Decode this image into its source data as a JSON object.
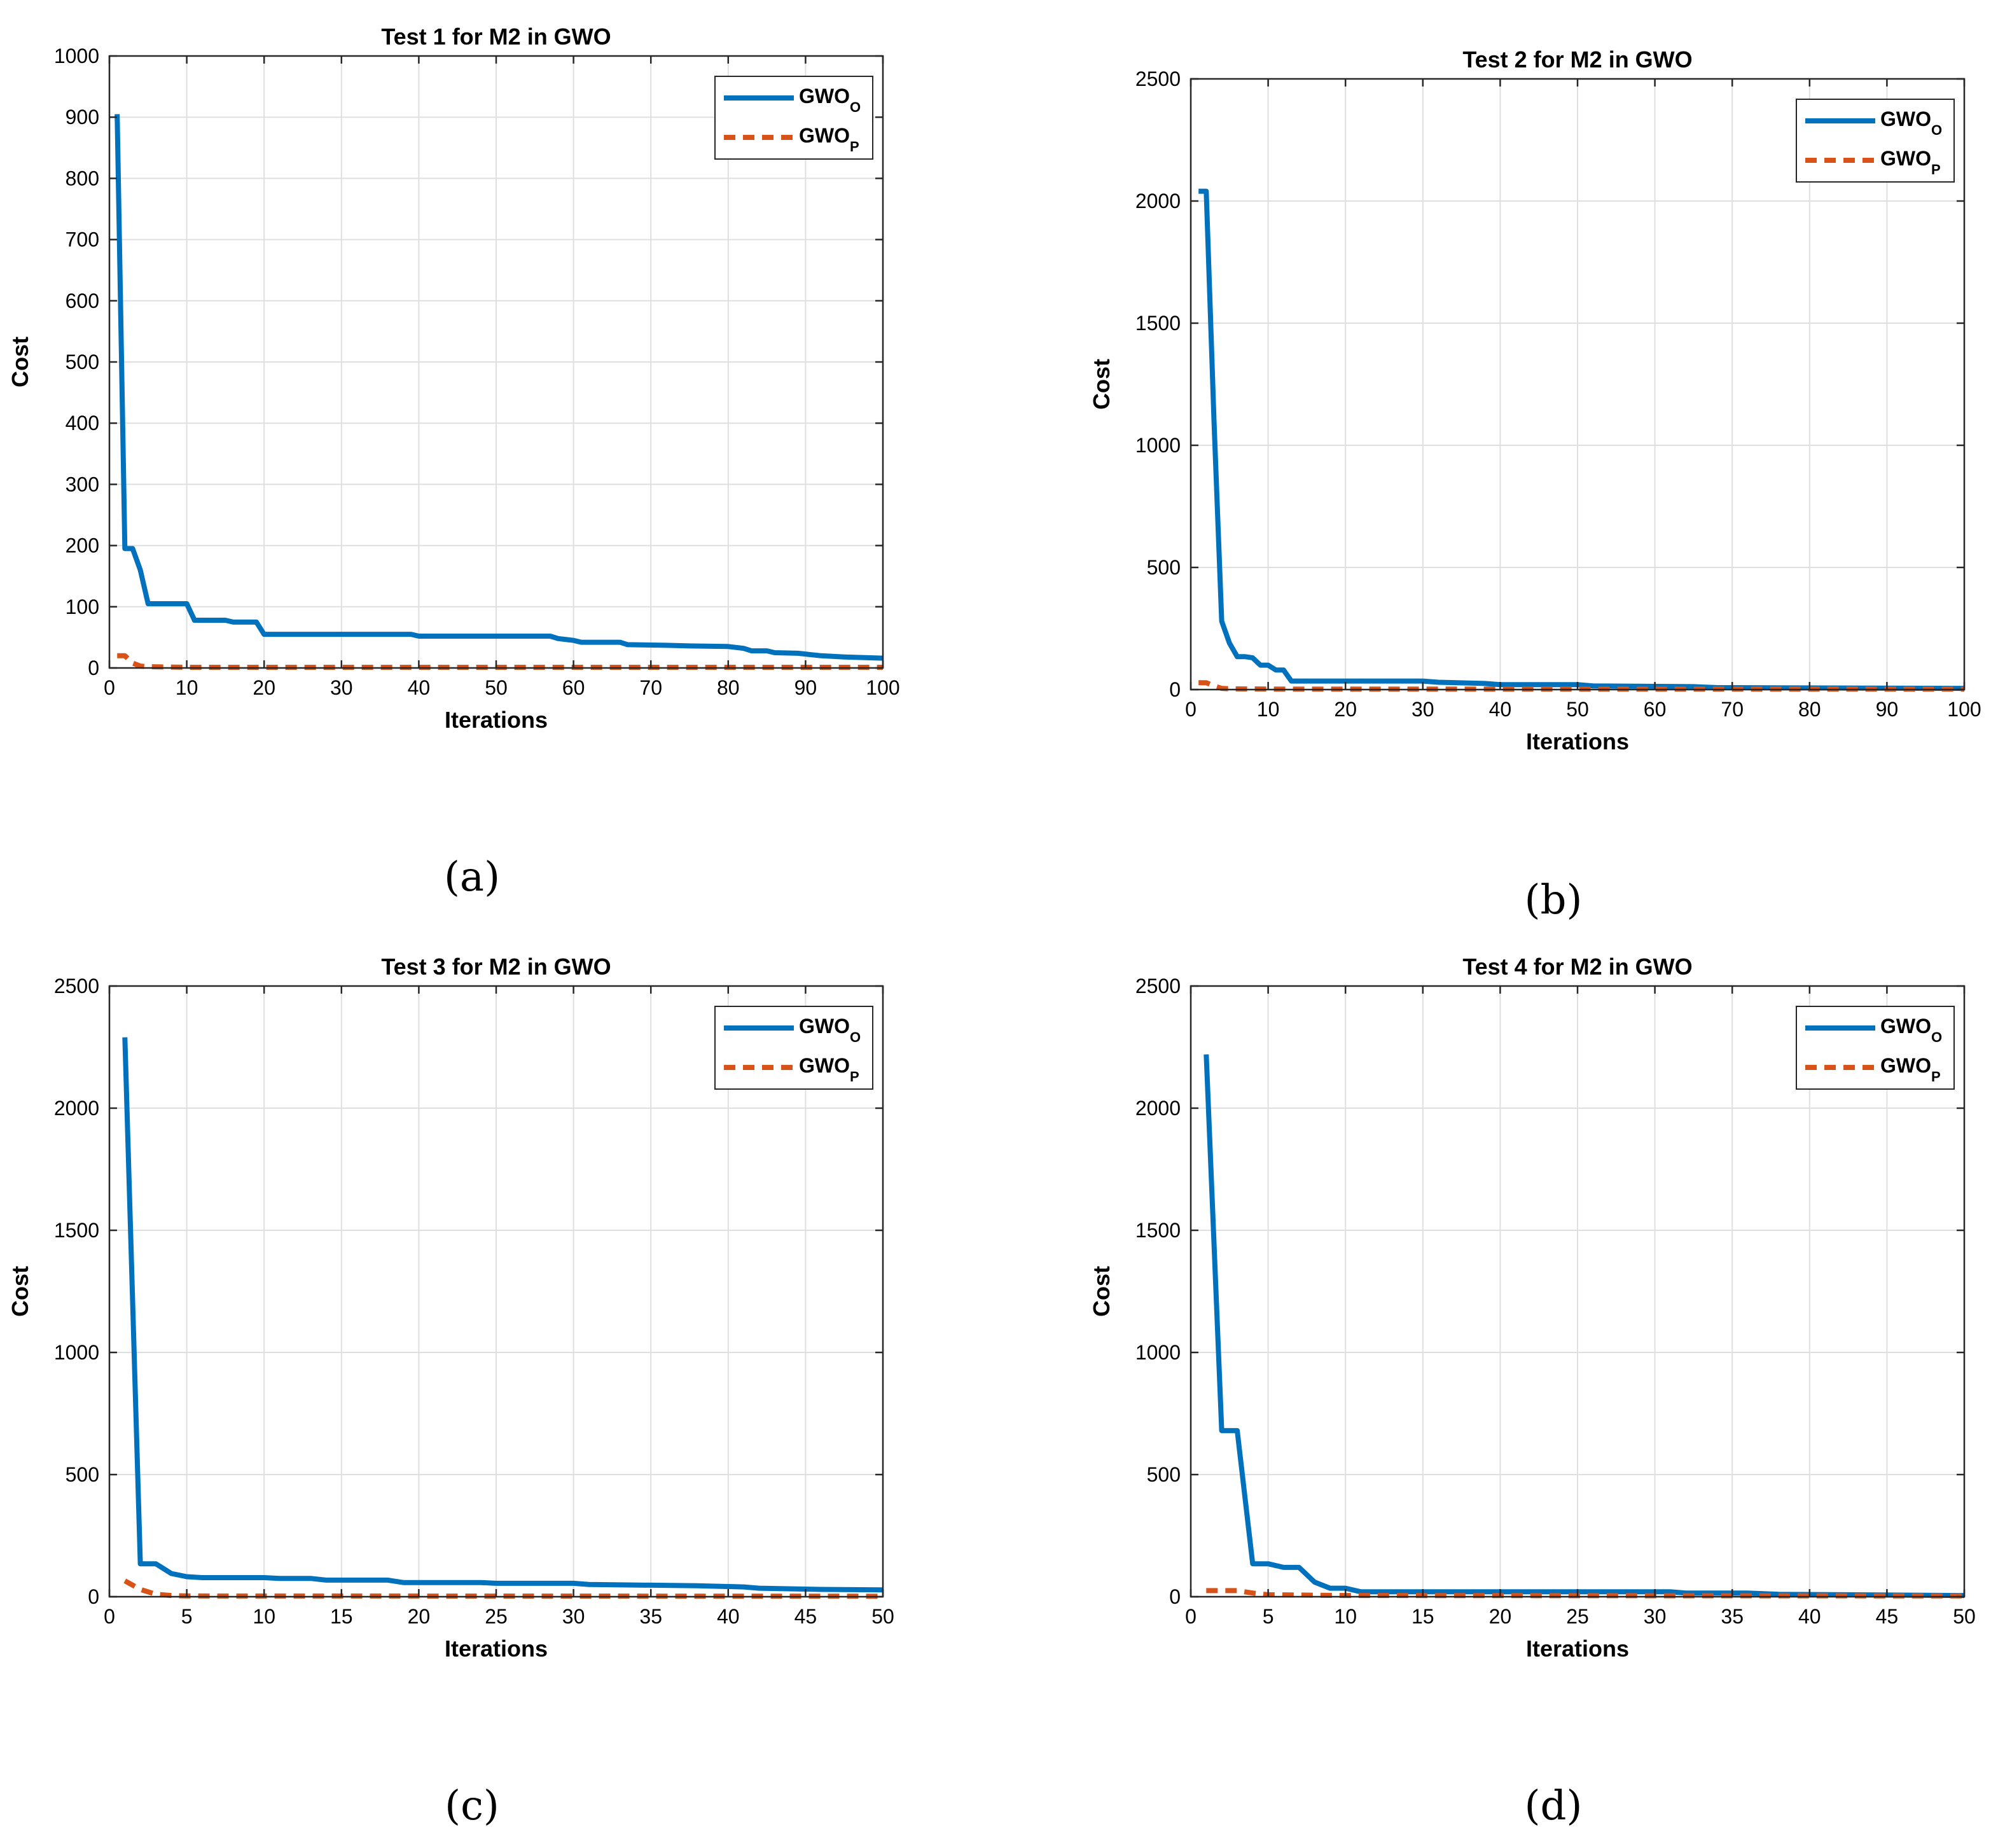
{
  "chart_data": [
    {
      "type": "line",
      "panel": "a",
      "caption": "(a)",
      "title": "Test 1 for M2 in GWO",
      "xlabel": "Iterations",
      "ylabel": "Cost",
      "xlim": [
        0,
        100
      ],
      "ylim": [
        0,
        1000
      ],
      "xticks": [
        0,
        10,
        20,
        30,
        40,
        50,
        60,
        70,
        80,
        90,
        100
      ],
      "yticks": [
        0,
        100,
        200,
        300,
        400,
        500,
        600,
        700,
        800,
        900,
        1000
      ],
      "grid": true,
      "legend_position": "top-right",
      "series": [
        {
          "name": "GWO_O",
          "legend_main": "GWO",
          "legend_sub": "O",
          "color": "#0072BD",
          "style": "solid",
          "x": [
            1,
            2,
            3,
            4,
            5,
            6,
            10,
            11,
            15,
            16,
            19,
            20,
            39,
            40,
            57,
            58,
            60,
            61,
            66,
            67,
            72,
            75,
            80,
            82,
            83,
            85,
            86,
            89,
            92,
            95,
            100
          ],
          "y": [
            905,
            195,
            195,
            160,
            105,
            105,
            105,
            78,
            78,
            75,
            75,
            55,
            55,
            52,
            52,
            48,
            45,
            42,
            42,
            38,
            37,
            36,
            35,
            32,
            28,
            28,
            25,
            24,
            20,
            18,
            16
          ]
        },
        {
          "name": "GWO_P",
          "legend_main": "GWO",
          "legend_sub": "P",
          "color": "#D95319",
          "style": "dashed",
          "x": [
            1,
            2,
            3,
            4,
            5,
            10,
            20,
            100
          ],
          "y": [
            20,
            20,
            8,
            3,
            2,
            1,
            1,
            1
          ]
        }
      ]
    },
    {
      "type": "line",
      "panel": "b",
      "caption": "(b)",
      "title": "Test 2 for M2 in GWO",
      "xlabel": "Iterations",
      "ylabel": "Cost",
      "xlim": [
        0,
        100
      ],
      "ylim": [
        0,
        2500
      ],
      "xticks": [
        0,
        10,
        20,
        30,
        40,
        50,
        60,
        70,
        80,
        90,
        100
      ],
      "yticks": [
        0,
        500,
        1000,
        1500,
        2000,
        2500
      ],
      "grid": true,
      "legend_position": "top-right",
      "series": [
        {
          "name": "GWO_O",
          "legend_main": "GWO",
          "legend_sub": "O",
          "color": "#0072BD",
          "style": "solid",
          "x": [
            1,
            2,
            3,
            4,
            5,
            6,
            7,
            8,
            9,
            10,
            11,
            12,
            13,
            20,
            30,
            32,
            38,
            40,
            50,
            52,
            65,
            68,
            100
          ],
          "y": [
            2040,
            2040,
            1100,
            280,
            190,
            135,
            135,
            130,
            100,
            100,
            80,
            80,
            35,
            35,
            35,
            30,
            25,
            20,
            20,
            15,
            12,
            8,
            5
          ]
        },
        {
          "name": "GWO_P",
          "legend_main": "GWO",
          "legend_sub": "P",
          "color": "#D95319",
          "style": "dashed",
          "x": [
            1,
            2,
            3,
            4,
            5,
            10,
            100
          ],
          "y": [
            28,
            28,
            15,
            5,
            3,
            2,
            2
          ]
        }
      ]
    },
    {
      "type": "line",
      "panel": "c",
      "caption": "(c)",
      "title": "Test 3 for M2 in GWO",
      "xlabel": "Iterations",
      "ylabel": "Cost",
      "xlim": [
        0,
        50
      ],
      "ylim": [
        0,
        2500
      ],
      "xticks": [
        0,
        5,
        10,
        15,
        20,
        25,
        30,
        35,
        40,
        45,
        50
      ],
      "yticks": [
        0,
        500,
        1000,
        1500,
        2000,
        2500
      ],
      "grid": true,
      "legend_position": "top-right",
      "series": [
        {
          "name": "GWO_O",
          "legend_main": "GWO",
          "legend_sub": "O",
          "color": "#0072BD",
          "style": "solid",
          "x": [
            1,
            2,
            3,
            4,
            5,
            6,
            10,
            11,
            13,
            14,
            18,
            19,
            24,
            25,
            30,
            31,
            38,
            41,
            42,
            46,
            50
          ],
          "y": [
            2290,
            135,
            135,
            95,
            82,
            78,
            78,
            75,
            75,
            68,
            68,
            58,
            58,
            55,
            55,
            50,
            45,
            40,
            35,
            30,
            28
          ]
        },
        {
          "name": "GWO_P",
          "legend_main": "GWO",
          "legend_sub": "P",
          "color": "#D95319",
          "style": "dashed",
          "x": [
            1,
            2,
            3,
            4,
            5,
            50
          ],
          "y": [
            65,
            30,
            10,
            5,
            3,
            2
          ]
        }
      ]
    },
    {
      "type": "line",
      "panel": "d",
      "caption": "(d)",
      "title": "Test 4 for M2 in GWO",
      "xlabel": "Iterations",
      "ylabel": "Cost",
      "xlim": [
        0,
        50
      ],
      "ylim": [
        0,
        2500
      ],
      "xticks": [
        0,
        5,
        10,
        15,
        20,
        25,
        30,
        35,
        40,
        45,
        50
      ],
      "yticks": [
        0,
        500,
        1000,
        1500,
        2000,
        2500
      ],
      "grid": true,
      "legend_position": "top-right",
      "series": [
        {
          "name": "GWO_O",
          "legend_main": "GWO",
          "legend_sub": "O",
          "color": "#0072BD",
          "style": "solid",
          "x": [
            1,
            2,
            3,
            4,
            5,
            6,
            7,
            8,
            9,
            10,
            11,
            31,
            32,
            36,
            38,
            50
          ],
          "y": [
            2220,
            680,
            680,
            135,
            135,
            120,
            120,
            60,
            35,
            35,
            20,
            20,
            15,
            15,
            10,
            5
          ]
        },
        {
          "name": "GWO_P",
          "legend_main": "GWO",
          "legend_sub": "P",
          "color": "#D95319",
          "style": "dashed",
          "x": [
            1,
            2,
            3,
            4,
            5,
            10,
            50
          ],
          "y": [
            25,
            25,
            25,
            15,
            8,
            5,
            3
          ]
        }
      ]
    }
  ]
}
